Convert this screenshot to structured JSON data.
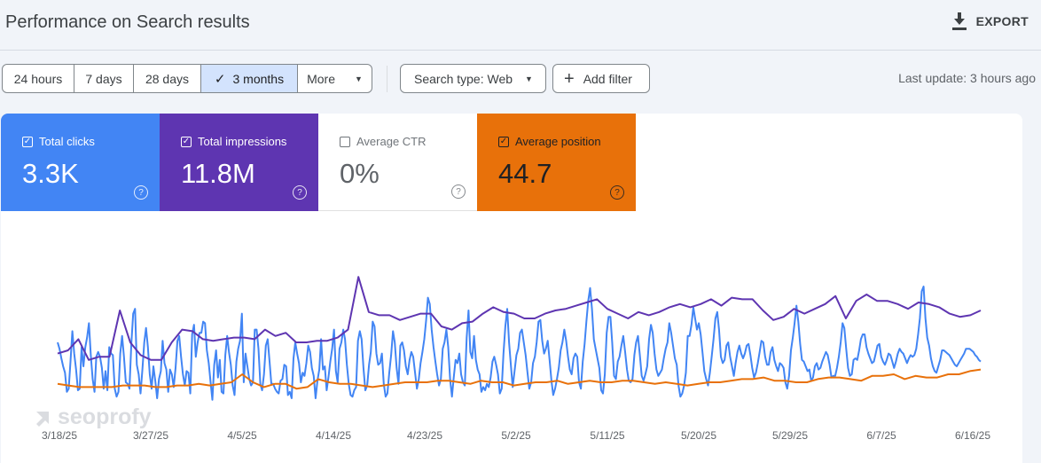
{
  "header": {
    "title": "Performance on Search results",
    "export_label": "EXPORT"
  },
  "toolbar": {
    "ranges": [
      "24 hours",
      "7 days",
      "28 days",
      "3 months",
      "More"
    ],
    "active_range": "3 months",
    "search_type": "Search type: Web",
    "add_filter": "Add filter",
    "last_update": "Last update: 3 hours ago"
  },
  "metrics": [
    {
      "label": "Total clicks",
      "value": "3.3K",
      "checked": true,
      "color": "#4285f4"
    },
    {
      "label": "Total impressions",
      "value": "11.8M",
      "checked": true,
      "color": "#5e35b1"
    },
    {
      "label": "Average CTR",
      "value": "0%",
      "checked": false,
      "color": "#ffffff"
    },
    {
      "label": "Average position",
      "value": "44.7",
      "checked": true,
      "color": "#e8710a"
    }
  ],
  "watermark": "seoprofy",
  "chart_data": {
    "type": "line",
    "x_tick_labels": [
      "3/18/25",
      "3/27/25",
      "4/5/25",
      "4/14/25",
      "4/23/25",
      "5/2/25",
      "5/11/25",
      "5/20/25",
      "5/29/25",
      "6/7/25",
      "6/16/25"
    ],
    "y_range": [
      0,
      100
    ],
    "series": [
      {
        "name": "Total clicks",
        "color": "#4285f4",
        "values": [
          40,
          36,
          30,
          25,
          21,
          9,
          11,
          28,
          47,
          33,
          23,
          10,
          11,
          37,
          25,
          37,
          43,
          52,
          32,
          17,
          9,
          31,
          34,
          31,
          24,
          11,
          22,
          10,
          37,
          33,
          32,
          11,
          6,
          9,
          33,
          44,
          31,
          15,
          14,
          11,
          39,
          58,
          61,
          26,
          20,
          8,
          23,
          40,
          49,
          37,
          20,
          11,
          25,
          16,
          5,
          17,
          22,
          41,
          27,
          23,
          9,
          23,
          20,
          12,
          24,
          41,
          44,
          31,
          20,
          13,
          22,
          21,
          8,
          45,
          51,
          31,
          40,
          46,
          46,
          53,
          52,
          35,
          27,
          15,
          4,
          26,
          35,
          18,
          29,
          9,
          8,
          32,
          44,
          34,
          26,
          13,
          7,
          28,
          36,
          41,
          58,
          15,
          33,
          25,
          17,
          13,
          15,
          48,
          48,
          36,
          14,
          10,
          20,
          38,
          42,
          28,
          14,
          14,
          11,
          9,
          8,
          16,
          17,
          26,
          25,
          7,
          9,
          5,
          30,
          40,
          33,
          27,
          15,
          21,
          19,
          27,
          38,
          34,
          24,
          19,
          5,
          16,
          23,
          42,
          23,
          25,
          10,
          18,
          28,
          36,
          48,
          22,
          15,
          36,
          40,
          48,
          42,
          26,
          14,
          7,
          6,
          10,
          12,
          41,
          47,
          42,
          24,
          10,
          13,
          26,
          34,
          53,
          50,
          33,
          26,
          27,
          33,
          14,
          6,
          8,
          21,
          32,
          47,
          40,
          24,
          14,
          38,
          40,
          35,
          25,
          20,
          29,
          34,
          31,
          21,
          11,
          17,
          27,
          34,
          42,
          54,
          68,
          64,
          48,
          37,
          28,
          20,
          13,
          17,
          36,
          40,
          48,
          37,
          17,
          6,
          18,
          29,
          27,
          33,
          20,
          15,
          13,
          43,
          60,
          34,
          30,
          44,
          29,
          23,
          20,
          9,
          12,
          10,
          14,
          12,
          18,
          28,
          31,
          26,
          20,
          8,
          11,
          33,
          50,
          61,
          40,
          26,
          12,
          22,
          32,
          36,
          46,
          48,
          40,
          32,
          21,
          11,
          15,
          27,
          31,
          40,
          53,
          54,
          41,
          33,
          36,
          41,
          29,
          16,
          7,
          11,
          17,
          24,
          35,
          40,
          48,
          41,
          31,
          23,
          20,
          30,
          33,
          31,
          15,
          11,
          28,
          39,
          53,
          66,
          74,
          61,
          42,
          36,
          30,
          24,
          10,
          8,
          20,
          46,
          56,
          56,
          40,
          19,
          17,
          28,
          31,
          38,
          44,
          34,
          23,
          16,
          15,
          17,
          32,
          40,
          44,
          32,
          19,
          16,
          20,
          25,
          42,
          51,
          46,
          33,
          23,
          19,
          21,
          23,
          30,
          36,
          40,
          52,
          46,
          38,
          30,
          26,
          13,
          6,
          8,
          13,
          21,
          44,
          44,
          51,
          62,
          55,
          48,
          52,
          45,
          34,
          22,
          17,
          13,
          21,
          31,
          42,
          55,
          59,
          48,
          31,
          27,
          29,
          38,
          40,
          31,
          25,
          19,
          27,
          34,
          38,
          33,
          30,
          33,
          38,
          39,
          32,
          24,
          18,
          21,
          27,
          34,
          41,
          40,
          31,
          26,
          26,
          34,
          37,
          29,
          25,
          22,
          27,
          26,
          24,
          15,
          11,
          19,
          35,
          43,
          52,
          63,
          53,
          39,
          29,
          28,
          25,
          22,
          23,
          16,
          18,
          25,
          27,
          23,
          24,
          28,
          31,
          34,
          32,
          26,
          18,
          19,
          19,
          24,
          31,
          40,
          52,
          49,
          36,
          24,
          19,
          20,
          29,
          30,
          29,
          35,
          42,
          45,
          45,
          37,
          33,
          30,
          27,
          28,
          33,
          38,
          39,
          31,
          28,
          26,
          29,
          33,
          32,
          28,
          24,
          28,
          33,
          36,
          34,
          33,
          30,
          27,
          30,
          32,
          31,
          32,
          36,
          45,
          55,
          72,
          75,
          55,
          43,
          38,
          30,
          25,
          22,
          21,
          25,
          29,
          35,
          35,
          34,
          33,
          32,
          30,
          28,
          26,
          25,
          27,
          29,
          31,
          33,
          36,
          36,
          36,
          35,
          34,
          32,
          31,
          29,
          28
        ]
      },
      {
        "name": "Total impressions",
        "color": "#5e35b1",
        "values": [
          33,
          35,
          42,
          29,
          31,
          31,
          60,
          40,
          32,
          29,
          29,
          40,
          48,
          47,
          42,
          41,
          42,
          43,
          43,
          42,
          48,
          44,
          46,
          40,
          40,
          41,
          41,
          43,
          48,
          81,
          59,
          57,
          57,
          54,
          56,
          58,
          58,
          50,
          48,
          52,
          53,
          58,
          62,
          59,
          58,
          55,
          55,
          58,
          60,
          61,
          63,
          65,
          67,
          61,
          58,
          55,
          59,
          57,
          59,
          62,
          64,
          62,
          64,
          67,
          63,
          68,
          67,
          67,
          60,
          54,
          56,
          61,
          58,
          61,
          64,
          69,
          55,
          66,
          70,
          66,
          66,
          64,
          61,
          65,
          64,
          62,
          58,
          56,
          57,
          60
        ]
      },
      {
        "name": "Average position",
        "color": "#e8710a",
        "values": [
          14,
          13,
          12,
          12,
          12,
          12,
          13,
          13,
          13,
          12,
          12,
          13,
          13,
          14,
          13,
          14,
          15,
          20,
          15,
          12,
          14,
          14,
          11,
          12,
          17,
          15,
          14,
          14,
          13,
          12,
          13,
          14,
          15,
          15,
          15,
          16,
          16,
          15,
          14,
          16,
          15,
          15,
          13,
          14,
          15,
          15,
          16,
          14,
          15,
          16,
          15,
          15,
          16,
          16,
          15,
          14,
          15,
          14,
          13,
          14,
          15,
          15,
          16,
          17,
          17,
          18,
          16,
          16,
          15,
          15,
          17,
          18,
          18,
          17,
          16,
          19,
          19,
          20,
          17,
          19,
          18,
          18,
          20,
          20,
          22,
          23
        ]
      }
    ]
  }
}
